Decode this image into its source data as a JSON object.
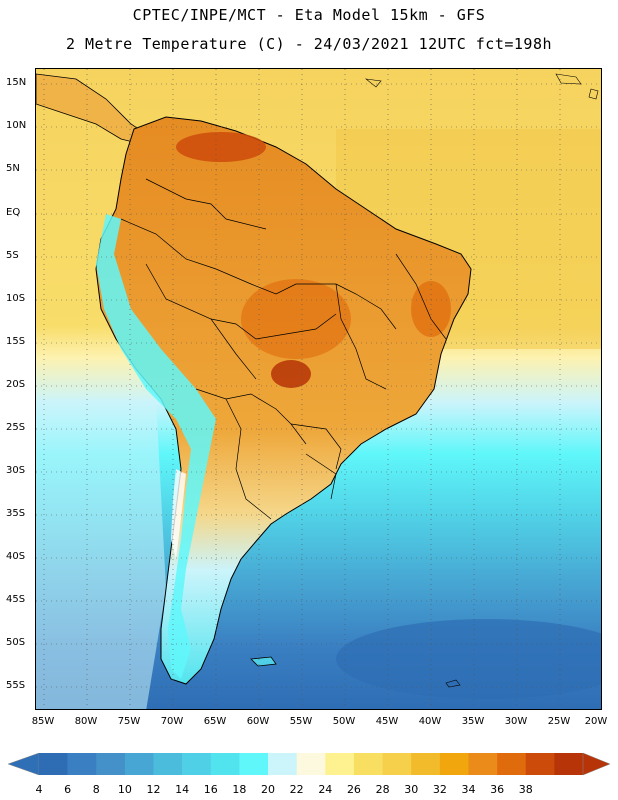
{
  "header": {
    "line1": "CPTEC/INPE/MCT -  Eta Model 15km - GFS",
    "line2": "2 Metre Temperature (C) - 24/03/2021 12UTC fct=198h"
  },
  "axes": {
    "latitudes": [
      "15N",
      "10N",
      "5N",
      "EQ",
      "5S",
      "10S",
      "15S",
      "20S",
      "25S",
      "30S",
      "35S",
      "40S",
      "45S",
      "50S",
      "55S"
    ],
    "longitudes": [
      "85W",
      "80W",
      "75W",
      "70W",
      "65W",
      "60W",
      "55W",
      "50W",
      "45W",
      "40W",
      "35W",
      "30W",
      "25W",
      "20W"
    ]
  },
  "legend": {
    "labels": [
      "4",
      "6",
      "8",
      "10",
      "12",
      "14",
      "16",
      "18",
      "20",
      "22",
      "24",
      "26",
      "28",
      "30",
      "32",
      "34",
      "36",
      "38"
    ],
    "colors": [
      "#2e6db4",
      "#3a7fc2",
      "#4391c8",
      "#47a6d3",
      "#4cbcdd",
      "#50d0e6",
      "#52e4ee",
      "#5ff7fa",
      "#cbf4fb",
      "#fdf9df",
      "#fdf190",
      "#f8df62",
      "#f6d04a",
      "#f2bb2c",
      "#f0a60c",
      "#eb8b1a",
      "#e06b0c",
      "#cd4b0a",
      "#b63407"
    ],
    "under_color": "#2f6fb6",
    "over_color": "#b63407"
  },
  "map": {
    "ocean_color_north": "#f6d15a",
    "ocean_color_south": "#3a7fc2",
    "land_color": "#eea73a",
    "andes_color": "#5ff7fa",
    "border_color": "#000000"
  }
}
